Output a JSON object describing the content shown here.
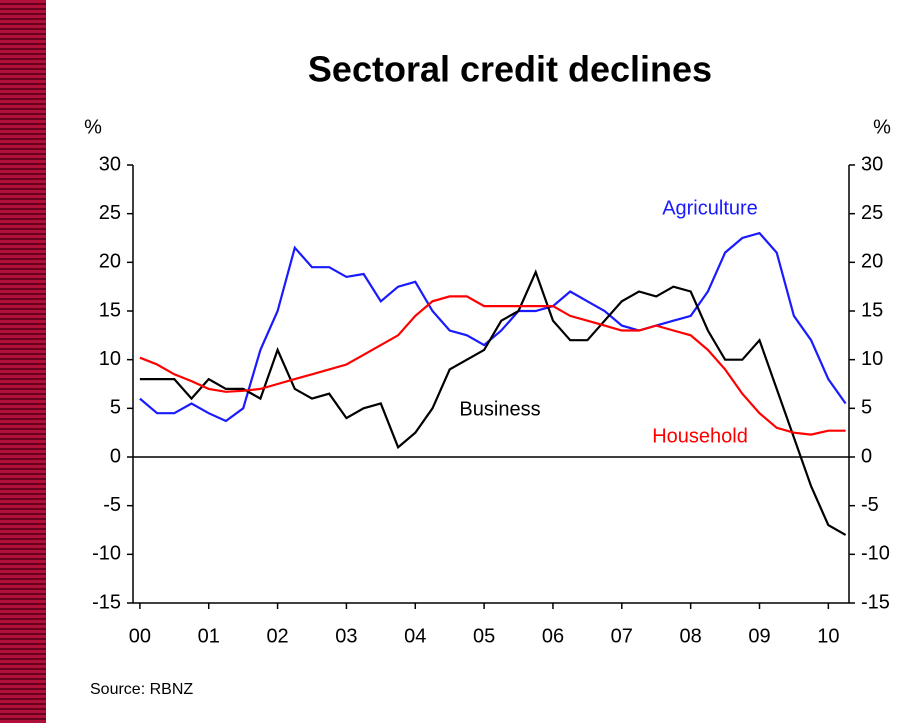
{
  "chart_data": {
    "type": "line",
    "title": "Sectoral credit declines",
    "y_label": "%",
    "y2_label": "%",
    "source": "Source: RBNZ",
    "x": [
      2000,
      2000.25,
      2000.5,
      2000.75,
      2001,
      2001.25,
      2001.5,
      2001.75,
      2002,
      2002.25,
      2002.5,
      2002.75,
      2003,
      2003.25,
      2003.5,
      2003.75,
      2004,
      2004.25,
      2004.5,
      2004.75,
      2005,
      2005.25,
      2005.5,
      2005.75,
      2006,
      2006.25,
      2006.5,
      2006.75,
      2007,
      2007.25,
      2007.5,
      2007.75,
      2008,
      2008.25,
      2008.5,
      2008.75,
      2009,
      2009.25,
      2009.5,
      2009.75,
      2010,
      2010.25
    ],
    "series": [
      {
        "name": "Agriculture",
        "color": "#1a1aff",
        "values": [
          6,
          4.5,
          4.5,
          5.5,
          4.5,
          3.7,
          5,
          11,
          15,
          21.5,
          19.5,
          19.5,
          18.5,
          18.8,
          16,
          17.5,
          18,
          15,
          13,
          12.5,
          11.5,
          13,
          15,
          15,
          15.5,
          17,
          16,
          15,
          13.5,
          13,
          13.5,
          14,
          14.5,
          17,
          21,
          22.5,
          23,
          21,
          14.5,
          12,
          8,
          5.5
        ]
      },
      {
        "name": "Business",
        "color": "#000000",
        "values": [
          8,
          8,
          8,
          6,
          8,
          7,
          7,
          6,
          11,
          7,
          6,
          6.5,
          4,
          5,
          5.5,
          1,
          2.5,
          5,
          9,
          10,
          11,
          14,
          15,
          19,
          14,
          12,
          12,
          14,
          16,
          17,
          16.5,
          17.5,
          17,
          13,
          10,
          10,
          12,
          7,
          2,
          -3,
          -7,
          -8
        ]
      },
      {
        "name": "Household",
        "color": "#ff0000",
        "values": [
          10.2,
          9.5,
          8.5,
          7.8,
          7,
          6.7,
          6.8,
          7,
          7.5,
          8,
          8.5,
          9,
          9.5,
          10.5,
          11.5,
          12.5,
          14.5,
          16,
          16.5,
          16.5,
          15.5,
          15.5,
          15.5,
          15.5,
          15.5,
          14.5,
          14,
          13.5,
          13,
          13,
          13.5,
          13,
          12.5,
          11,
          9,
          6.5,
          4.5,
          3,
          2.5,
          2.3,
          2.7,
          2.7
        ]
      }
    ],
    "xlim": [
      1999.9,
      2010.3
    ],
    "xticks": [
      {
        "value": 2000,
        "label": "00"
      },
      {
        "value": 2001,
        "label": "01"
      },
      {
        "value": 2002,
        "label": "02"
      },
      {
        "value": 2003,
        "label": "03"
      },
      {
        "value": 2004,
        "label": "04"
      },
      {
        "value": 2005,
        "label": "05"
      },
      {
        "value": 2006,
        "label": "06"
      },
      {
        "value": 2007,
        "label": "07"
      },
      {
        "value": 2008,
        "label": "08"
      },
      {
        "value": 2009,
        "label": "09"
      },
      {
        "value": 2010,
        "label": "10"
      }
    ],
    "ylim": [
      -15,
      30
    ],
    "yticks": [
      30,
      25,
      20,
      15,
      10,
      5,
      0,
      -5,
      -10,
      -15
    ],
    "y2lim": [
      -15,
      30
    ],
    "y2ticks": [
      30,
      25,
      20,
      15,
      10,
      5,
      0,
      -5,
      -10,
      -15
    ]
  }
}
